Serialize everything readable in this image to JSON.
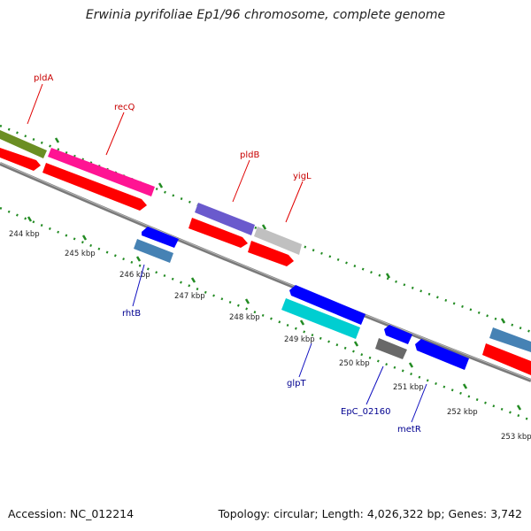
{
  "title": "Erwinia pyrifoliae Ep1/96 chromosome, complete genome",
  "footer": {
    "accession": "Accession: NC_012214",
    "topology": "Topology: circular; Length: 4,026,322 bp; Genes: 3,742"
  },
  "tick_labels": [
    "244 kbp",
    "245 kbp",
    "246 kbp",
    "247 kbp",
    "248 kbp",
    "249 kbp",
    "250 kbp",
    "251 kbp",
    "252 kbp",
    "253 kbp"
  ],
  "gene_labels_top": [
    "pldA",
    "recQ",
    "pldB",
    "yigL"
  ],
  "gene_labels_bottom": [
    "rhtB",
    "glpT",
    "EpC_02160",
    "metR"
  ],
  "colors": {
    "green_gene": "#6b8e23",
    "magenta_gene": "#ff1493",
    "red_cds": "#ff0000",
    "slate_blue_gene": "#6a5acd",
    "silver_gene": "#c0c0c0",
    "blue_gene": "#0000ff",
    "steel_blue_gene": "#4682b4",
    "cyan_gene": "#00ced1",
    "gray_gene": "#696969",
    "backbone": "#808080",
    "tick_marks": "#228b22",
    "top_label": "#c80000",
    "bottom_label": "#000090"
  }
}
